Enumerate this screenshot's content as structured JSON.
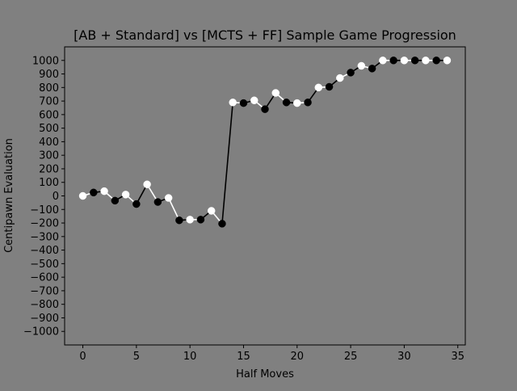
{
  "chart_data": {
    "type": "line",
    "title": "[AB + Standard] vs [MCTS + FF] Sample Game Progression",
    "xlabel": "Half Moves",
    "ylabel": "Centipawn Evaluation",
    "xlim": [
      -1.7,
      35.7
    ],
    "ylim": [
      -1100,
      1100
    ],
    "xticks": [
      0,
      5,
      10,
      15,
      20,
      25,
      30,
      35
    ],
    "yticks": [
      -1000,
      -900,
      -800,
      -700,
      -600,
      -500,
      -400,
      -300,
      -200,
      -100,
      0,
      100,
      200,
      300,
      400,
      500,
      600,
      700,
      800,
      900,
      1000
    ],
    "background": "#808080",
    "x": [
      0,
      1,
      2,
      3,
      4,
      5,
      6,
      7,
      8,
      9,
      10,
      11,
      12,
      13,
      14,
      15,
      16,
      17,
      18,
      19,
      20,
      21,
      22,
      23,
      24,
      25,
      26,
      27,
      28,
      29,
      30,
      31,
      32,
      33,
      34
    ],
    "values": [
      0,
      25,
      35,
      -35,
      10,
      -60,
      85,
      -45,
      -15,
      -180,
      -175,
      -175,
      -110,
      -205,
      690,
      685,
      705,
      640,
      760,
      690,
      685,
      690,
      800,
      805,
      870,
      910,
      960,
      940,
      1000,
      1000,
      1000,
      1000,
      1000,
      1000,
      1000
    ],
    "series_colors": {
      "even": "#ffffff",
      "odd": "#000000"
    },
    "segment_colors": {
      "from_even": "#ffffff",
      "from_odd": "#000000"
    }
  }
}
